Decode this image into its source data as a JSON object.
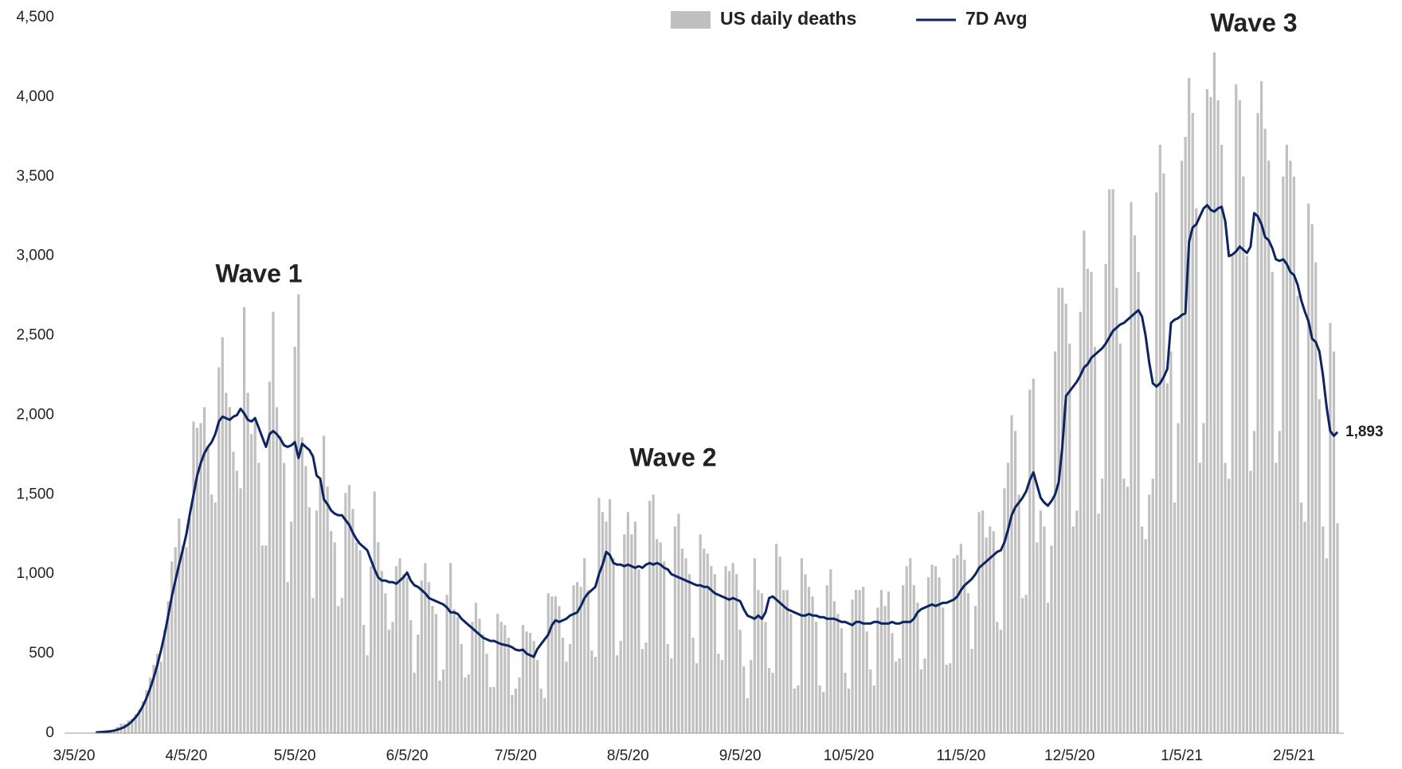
{
  "chart_data": {
    "type": "bar-line",
    "categories": [
      "3/5/20",
      null,
      null,
      null,
      null,
      null,
      null,
      null,
      null,
      null,
      null,
      null,
      null,
      null,
      null,
      null,
      null,
      null,
      null,
      null,
      null,
      null,
      null,
      null,
      null,
      null,
      null,
      null,
      null,
      null,
      null,
      "4/5/20",
      null,
      null,
      null,
      null,
      null,
      null,
      null,
      null,
      null,
      null,
      null,
      null,
      null,
      null,
      null,
      null,
      null,
      null,
      null,
      null,
      null,
      null,
      null,
      null,
      null,
      null,
      null,
      null,
      null,
      "5/5/20",
      null,
      null,
      null,
      null,
      null,
      null,
      null,
      null,
      null,
      null,
      null,
      null,
      null,
      null,
      null,
      null,
      null,
      null,
      null,
      null,
      null,
      null,
      null,
      null,
      null,
      null,
      null,
      null,
      null,
      null,
      "6/5/20",
      null,
      null,
      null,
      null,
      null,
      null,
      null,
      null,
      null,
      null,
      null,
      null,
      null,
      null,
      null,
      null,
      null,
      null,
      null,
      null,
      null,
      null,
      null,
      null,
      null,
      null,
      null,
      null,
      null,
      "7/5/20",
      null,
      null,
      null,
      null,
      null,
      null,
      null,
      null,
      null,
      null,
      null,
      null,
      null,
      null,
      null,
      null,
      null,
      null,
      null,
      null,
      null,
      null,
      null,
      null,
      null,
      null,
      null,
      null,
      null,
      null,
      "8/5/20",
      null,
      null,
      null,
      null,
      null,
      null,
      null,
      null,
      null,
      null,
      null,
      null,
      null,
      null,
      null,
      null,
      null,
      null,
      null,
      null,
      null,
      null,
      null,
      null,
      null,
      null,
      null,
      null,
      null,
      null,
      "9/5/20",
      null,
      null,
      null,
      null,
      null,
      null,
      null,
      null,
      null,
      null,
      null,
      null,
      null,
      null,
      null,
      null,
      null,
      null,
      null,
      null,
      null,
      null,
      null,
      null,
      null,
      null,
      null,
      null,
      null,
      "10/5/20",
      null,
      null,
      null,
      null,
      null,
      null,
      null,
      null,
      null,
      null,
      null,
      null,
      null,
      null,
      null,
      null,
      null,
      null,
      null,
      null,
      null,
      null,
      null,
      null,
      null,
      null,
      null,
      null,
      null,
      null,
      "11/5/20",
      null,
      null,
      null,
      null,
      null,
      null,
      null,
      null,
      null,
      null,
      null,
      null,
      null,
      null,
      null,
      null,
      null,
      null,
      null,
      null,
      null,
      null,
      null,
      null,
      null,
      null,
      null,
      null,
      null,
      "12/5/20",
      null,
      null,
      null,
      null,
      null,
      null,
      null,
      null,
      null,
      null,
      null,
      null,
      null,
      null,
      null,
      null,
      null,
      null,
      null,
      null,
      null,
      null,
      null,
      null,
      null,
      null,
      null,
      null,
      null,
      null,
      "1/5/21",
      null,
      null,
      null,
      null,
      null,
      null,
      null,
      null,
      null,
      null,
      null,
      null,
      null,
      null,
      null,
      null,
      null,
      null,
      null,
      null,
      null,
      null,
      null,
      null,
      null,
      null,
      null,
      null,
      null,
      null,
      "2/5/21",
      null,
      null,
      null,
      null,
      null,
      null,
      null,
      null,
      null,
      null,
      null,
      null
    ],
    "series": [
      {
        "name": "US daily deaths",
        "color": "#c0c0c0",
        "kind": "bar",
        "values": [
          0,
          0,
          0,
          1,
          2,
          3,
          5,
          8,
          12,
          15,
          10,
          20,
          40,
          60,
          60,
          80,
          90,
          120,
          150,
          200,
          270,
          350,
          430,
          500,
          450,
          650,
          830,
          1080,
          1170,
          1350,
          1180,
          1170,
          1350,
          1960,
          1920,
          1950,
          2050,
          1800,
          1500,
          1450,
          2300,
          2490,
          2140,
          2050,
          1770,
          1650,
          1540,
          2680,
          2140,
          1880,
          1990,
          1700,
          1180,
          1180,
          2210,
          2650,
          2050,
          1870,
          1700,
          950,
          1330,
          2430,
          2760,
          1860,
          1680,
          1420,
          850,
          1400,
          1590,
          1870,
          1550,
          1270,
          1200,
          800,
          850,
          1510,
          1560,
          1410,
          1200,
          1150,
          680,
          490,
          1050,
          1520,
          1200,
          1020,
          880,
          650,
          700,
          1050,
          1100,
          1000,
          980,
          710,
          380,
          620,
          960,
          1070,
          950,
          800,
          750,
          330,
          400,
          870,
          1070,
          780,
          730,
          560,
          350,
          370,
          700,
          820,
          720,
          620,
          500,
          290,
          290,
          750,
          700,
          680,
          600,
          240,
          280,
          350,
          680,
          640,
          630,
          580,
          460,
          280,
          220,
          880,
          860,
          860,
          800,
          600,
          450,
          560,
          930,
          950,
          920,
          1100,
          900,
          520,
          480,
          1480,
          1390,
          1330,
          1470,
          1100,
          490,
          580,
          1250,
          1390,
          1250,
          1330,
          1030,
          530,
          570,
          1460,
          1500,
          1220,
          1200,
          1080,
          560,
          470,
          1300,
          1380,
          1160,
          1100,
          1000,
          600,
          440,
          1250,
          1160,
          1130,
          1050,
          1000,
          500,
          460,
          1050,
          1020,
          1070,
          1000,
          650,
          420,
          220,
          460,
          1100,
          900,
          880,
          700,
          410,
          380,
          1190,
          1110,
          900,
          900,
          750,
          280,
          300,
          1100,
          1000,
          920,
          860,
          700,
          300,
          260,
          930,
          1030,
          830,
          750,
          660,
          380,
          280,
          840,
          900,
          900,
          920,
          640,
          400,
          300,
          790,
          900,
          800,
          890,
          630,
          450,
          470,
          930,
          1050,
          1100,
          930,
          820,
          400,
          470,
          980,
          1060,
          1050,
          980,
          790,
          430,
          440,
          1100,
          1120,
          1190,
          1090,
          880,
          530,
          800,
          1390,
          1400,
          1230,
          1300,
          1270,
          700,
          650,
          1540,
          1700,
          2000,
          1900,
          1500,
          850,
          870,
          2160,
          2230,
          1200,
          1400,
          1300,
          820,
          1180,
          2400,
          2800,
          2800,
          2700,
          2450,
          1300,
          1400,
          2650,
          3160,
          2920,
          2900,
          2430,
          1380,
          1600,
          2950,
          3420,
          3420,
          2800,
          2450,
          1600,
          1550,
          3340,
          3130,
          2900,
          1300,
          1220,
          1500,
          1600,
          3400,
          3700,
          3520,
          2200,
          2400,
          1450,
          1950,
          3600,
          3750,
          4120,
          3900,
          3300,
          1700,
          1950,
          4050,
          4000,
          4280,
          3980,
          3700,
          1700,
          1600,
          3000,
          4080,
          3980,
          3500,
          3000,
          1650,
          1900,
          3900,
          4100,
          3800,
          3600,
          2900,
          1700,
          1900,
          3500,
          3700,
          3600,
          3500,
          2750,
          1450,
          1330,
          3330,
          3200,
          2960,
          2100,
          1300,
          1100,
          2580,
          2400,
          1320
        ]
      },
      {
        "name": "7D Avg",
        "color": "#0c2461",
        "kind": "line",
        "end_label": "1,893",
        "values": [
          null,
          null,
          null,
          null,
          null,
          null,
          5,
          6,
          8,
          10,
          12,
          16,
          22,
          30,
          40,
          55,
          75,
          100,
          130,
          170,
          220,
          280,
          350,
          430,
          520,
          620,
          740,
          860,
          960,
          1060,
          1150,
          1250,
          1380,
          1500,
          1620,
          1700,
          1760,
          1800,
          1830,
          1880,
          1960,
          1990,
          1980,
          1970,
          1990,
          2000,
          2040,
          2010,
          1970,
          1960,
          1980,
          1920,
          1860,
          1800,
          1880,
          1900,
          1880,
          1850,
          1810,
          1800,
          1810,
          1830,
          1730,
          1820,
          1800,
          1780,
          1740,
          1620,
          1600,
          1470,
          1440,
          1400,
          1380,
          1370,
          1370,
          1340,
          1310,
          1260,
          1220,
          1190,
          1170,
          1150,
          1090,
          1030,
          980,
          960,
          960,
          950,
          950,
          940,
          960,
          980,
          1010,
          960,
          930,
          920,
          900,
          880,
          850,
          840,
          830,
          820,
          810,
          790,
          760,
          760,
          750,
          720,
          700,
          680,
          660,
          640,
          620,
          600,
          590,
          580,
          580,
          570,
          560,
          555,
          550,
          540,
          525,
          520,
          525,
          500,
          490,
          480,
          530,
          560,
          590,
          620,
          680,
          710,
          700,
          710,
          720,
          740,
          750,
          760,
          800,
          850,
          880,
          900,
          920,
          1000,
          1060,
          1140,
          1120,
          1070,
          1060,
          1060,
          1050,
          1060,
          1050,
          1040,
          1050,
          1040,
          1060,
          1070,
          1060,
          1070,
          1060,
          1040,
          1030,
          1000,
          990,
          980,
          970,
          960,
          950,
          940,
          930,
          930,
          920,
          920,
          900,
          880,
          870,
          860,
          850,
          840,
          850,
          840,
          830,
          780,
          740,
          730,
          720,
          740,
          720,
          760,
          850,
          860,
          840,
          820,
          800,
          780,
          770,
          760,
          750,
          740,
          740,
          750,
          740,
          740,
          730,
          730,
          720,
          720,
          720,
          710,
          700,
          700,
          690,
          680,
          700,
          700,
          690,
          690,
          690,
          700,
          700,
          690,
          690,
          690,
          700,
          690,
          690,
          700,
          700,
          700,
          720,
          760,
          780,
          790,
          800,
          810,
          800,
          810,
          820,
          820,
          830,
          840,
          860,
          900,
          930,
          950,
          970,
          1000,
          1040,
          1060,
          1080,
          1100,
          1120,
          1140,
          1150,
          1200,
          1280,
          1370,
          1420,
          1450,
          1480,
          1520,
          1590,
          1640,
          1560,
          1480,
          1450,
          1430,
          1460,
          1500,
          1580,
          1800,
          2120,
          2150,
          2180,
          2210,
          2250,
          2300,
          2320,
          2360,
          2380,
          2400,
          2420,
          2450,
          2490,
          2530,
          2550,
          2570,
          2580,
          2600,
          2620,
          2640,
          2660,
          2620,
          2500,
          2330,
          2200,
          2180,
          2200,
          2240,
          2290,
          2580,
          2600,
          2610,
          2630,
          2640,
          3090,
          3180,
          3200,
          3250,
          3300,
          3320,
          3290,
          3280,
          3300,
          3310,
          3220,
          3000,
          3010,
          3030,
          3060,
          3040,
          3020,
          3060,
          3270,
          3250,
          3200,
          3120,
          3100,
          3050,
          2980,
          2970,
          2980,
          2950,
          2900,
          2880,
          2820,
          2720,
          2650,
          2590,
          2480,
          2460,
          2400,
          2250,
          2050,
          1900,
          1870,
          1893
        ]
      }
    ],
    "ylim": [
      0,
      4500
    ],
    "yticks": [
      0,
      500,
      {
        "value": 1000,
        "label": "1,000"
      },
      {
        "value": 1500,
        "label": "1,500"
      },
      {
        "value": 2000,
        "label": "2,000"
      },
      {
        "value": 2500,
        "label": "2,500"
      },
      {
        "value": 3000,
        "label": "3,000"
      },
      {
        "value": 3500,
        "label": "3,500"
      },
      {
        "value": 4000,
        "label": "4,000"
      },
      {
        "value": 4500,
        "label": "4,500"
      }
    ],
    "grid": false,
    "legend": "top",
    "annotations": [
      {
        "text": "Wave 1",
        "color": "#0a10e0"
      },
      {
        "text": "Wave 2",
        "color": "#0a10e0"
      },
      {
        "text": "Wave 3",
        "color": "#0a10e0"
      }
    ]
  }
}
